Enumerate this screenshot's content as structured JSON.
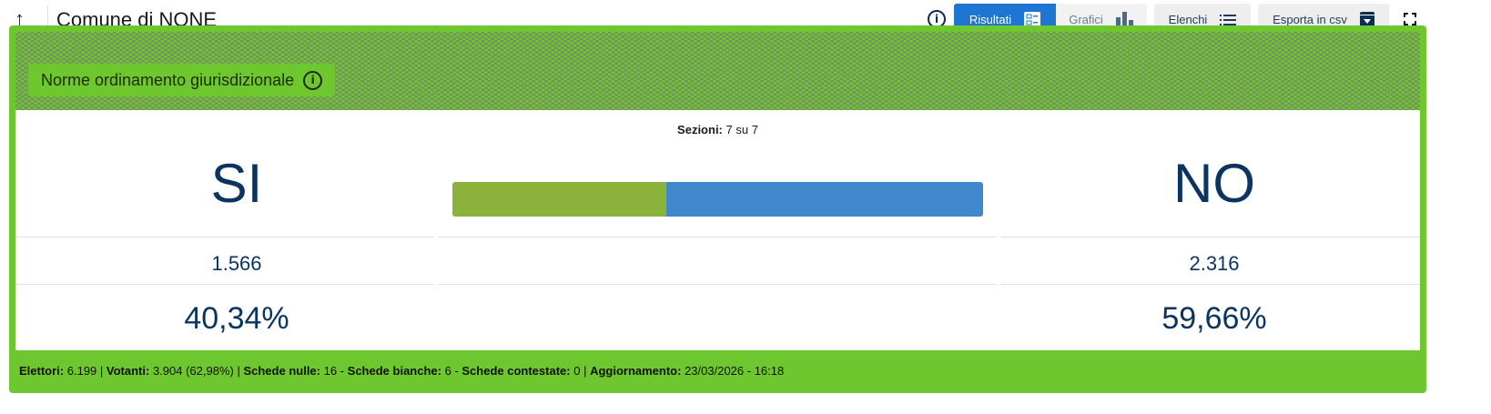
{
  "header": {
    "title": "Comune di NONE",
    "buttons": {
      "risultati": "Risultati",
      "grafici": "Grafici",
      "elenchi": "Elenchi",
      "csv": "Esporta in csv"
    }
  },
  "card": {
    "title": "Norme ordinamento giurisdizionale",
    "sezioni_label": "Sezioni:",
    "sezioni_value": "7 su 7",
    "si": {
      "label": "SI",
      "votes": "1.566",
      "percent": "40,34%",
      "percent_value": 40.34,
      "color": "#8bb33c"
    },
    "no": {
      "label": "NO",
      "votes": "2.316",
      "percent": "59,66%",
      "percent_value": 59.66,
      "color": "#3f88cc"
    },
    "footer": {
      "elettori_label": "Elettori:",
      "elettori": "6.199",
      "votanti_label": "Votanti:",
      "votanti": "3.904 (62,98%)",
      "nulle_label": "Schede nulle:",
      "nulle": "16",
      "bianche_label": "Schede bianche:",
      "bianche": "6",
      "contestate_label": "Schede contestate:",
      "contestate": "0",
      "agg_label": "Aggiornamento:",
      "agg": "23/03/2026 - 16:18"
    }
  },
  "colors": {
    "accent": "#1f76d2",
    "card_border": "#6ec72e"
  }
}
